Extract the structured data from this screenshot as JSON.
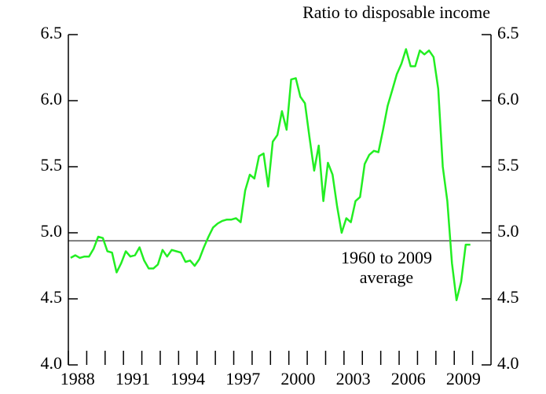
{
  "chart_data": {
    "type": "line",
    "title": "Ratio to disposable income",
    "annotation": [
      "1960 to 2009",
      "average"
    ],
    "reference_line": 4.94,
    "x": [
      1988.125,
      1988.375,
      1988.625,
      1988.875,
      1989.125,
      1989.375,
      1989.625,
      1989.875,
      1990.125,
      1990.375,
      1990.625,
      1990.875,
      1991.125,
      1991.375,
      1991.625,
      1991.875,
      1992.125,
      1992.375,
      1992.625,
      1992.875,
      1993.125,
      1993.375,
      1993.625,
      1993.875,
      1994.125,
      1994.375,
      1994.625,
      1994.875,
      1995.125,
      1995.375,
      1995.625,
      1995.875,
      1996.125,
      1996.375,
      1996.625,
      1996.875,
      1997.125,
      1997.375,
      1997.625,
      1997.875,
      1998.125,
      1998.375,
      1998.625,
      1998.875,
      1999.125,
      1999.375,
      1999.625,
      1999.875,
      2000.125,
      2000.375,
      2000.625,
      2000.875,
      2001.125,
      2001.375,
      2001.625,
      2001.875,
      2002.125,
      2002.375,
      2002.625,
      2002.875,
      2003.125,
      2003.375,
      2003.625,
      2003.875,
      2004.125,
      2004.375,
      2004.625,
      2004.875,
      2005.125,
      2005.375,
      2005.625,
      2005.875,
      2006.125,
      2006.375,
      2006.625,
      2006.875,
      2007.125,
      2007.375,
      2007.625,
      2007.875,
      2008.125,
      2008.375,
      2008.625,
      2008.875,
      2009.125,
      2009.375,
      2009.625,
      2009.875
    ],
    "series": [
      {
        "name": "Ratio",
        "color": "#22ee22",
        "values": [
          4.81,
          4.83,
          4.81,
          4.82,
          4.82,
          4.88,
          4.97,
          4.96,
          4.86,
          4.85,
          4.7,
          4.77,
          4.86,
          4.82,
          4.83,
          4.89,
          4.79,
          4.73,
          4.73,
          4.76,
          4.87,
          4.82,
          4.87,
          4.86,
          4.85,
          4.78,
          4.79,
          4.75,
          4.8,
          4.89,
          4.97,
          5.04,
          5.07,
          5.09,
          5.1,
          5.1,
          5.11,
          5.08,
          5.32,
          5.44,
          5.41,
          5.58,
          5.6,
          5.35,
          5.69,
          5.74,
          5.92,
          5.78,
          6.16,
          6.17,
          6.03,
          5.98,
          5.72,
          5.47,
          5.66,
          5.24,
          5.53,
          5.44,
          5.2,
          5.0,
          5.11,
          5.08,
          5.24,
          5.27,
          5.52,
          5.59,
          5.62,
          5.61,
          5.78,
          5.96,
          6.08,
          6.2,
          6.28,
          6.39,
          6.26,
          6.26,
          6.38,
          6.35,
          6.38,
          6.33,
          6.09,
          5.5,
          5.24,
          4.77,
          4.49,
          4.63,
          4.91,
          4.91
        ]
      }
    ],
    "xlim": [
      1988,
      2011
    ],
    "xticks": [
      {
        "value": 1988.5,
        "label": "1988"
      },
      {
        "value": 1991.5,
        "label": "1991"
      },
      {
        "value": 1994.5,
        "label": "1994"
      },
      {
        "value": 1997.5,
        "label": "1997"
      },
      {
        "value": 2000.5,
        "label": "2000"
      },
      {
        "value": 2003.5,
        "label": "2003"
      },
      {
        "value": 2006.5,
        "label": "2006"
      },
      {
        "value": 2009.5,
        "label": "2009"
      }
    ],
    "xminorticks": [
      1988,
      1989,
      1990,
      1991,
      1992,
      1993,
      1994,
      1995,
      1996,
      1997,
      1998,
      1999,
      2000,
      2001,
      2002,
      2003,
      2004,
      2005,
      2006,
      2007,
      2008,
      2009,
      2010
    ],
    "ylim": [
      4.0,
      6.5
    ],
    "yticks": [
      {
        "value": 4.0,
        "label": "4.0"
      },
      4.5,
      {
        "value": 5.0,
        "label": "5.0"
      },
      5.5,
      {
        "value": 6.0,
        "label": "6.0"
      },
      6.5
    ]
  }
}
